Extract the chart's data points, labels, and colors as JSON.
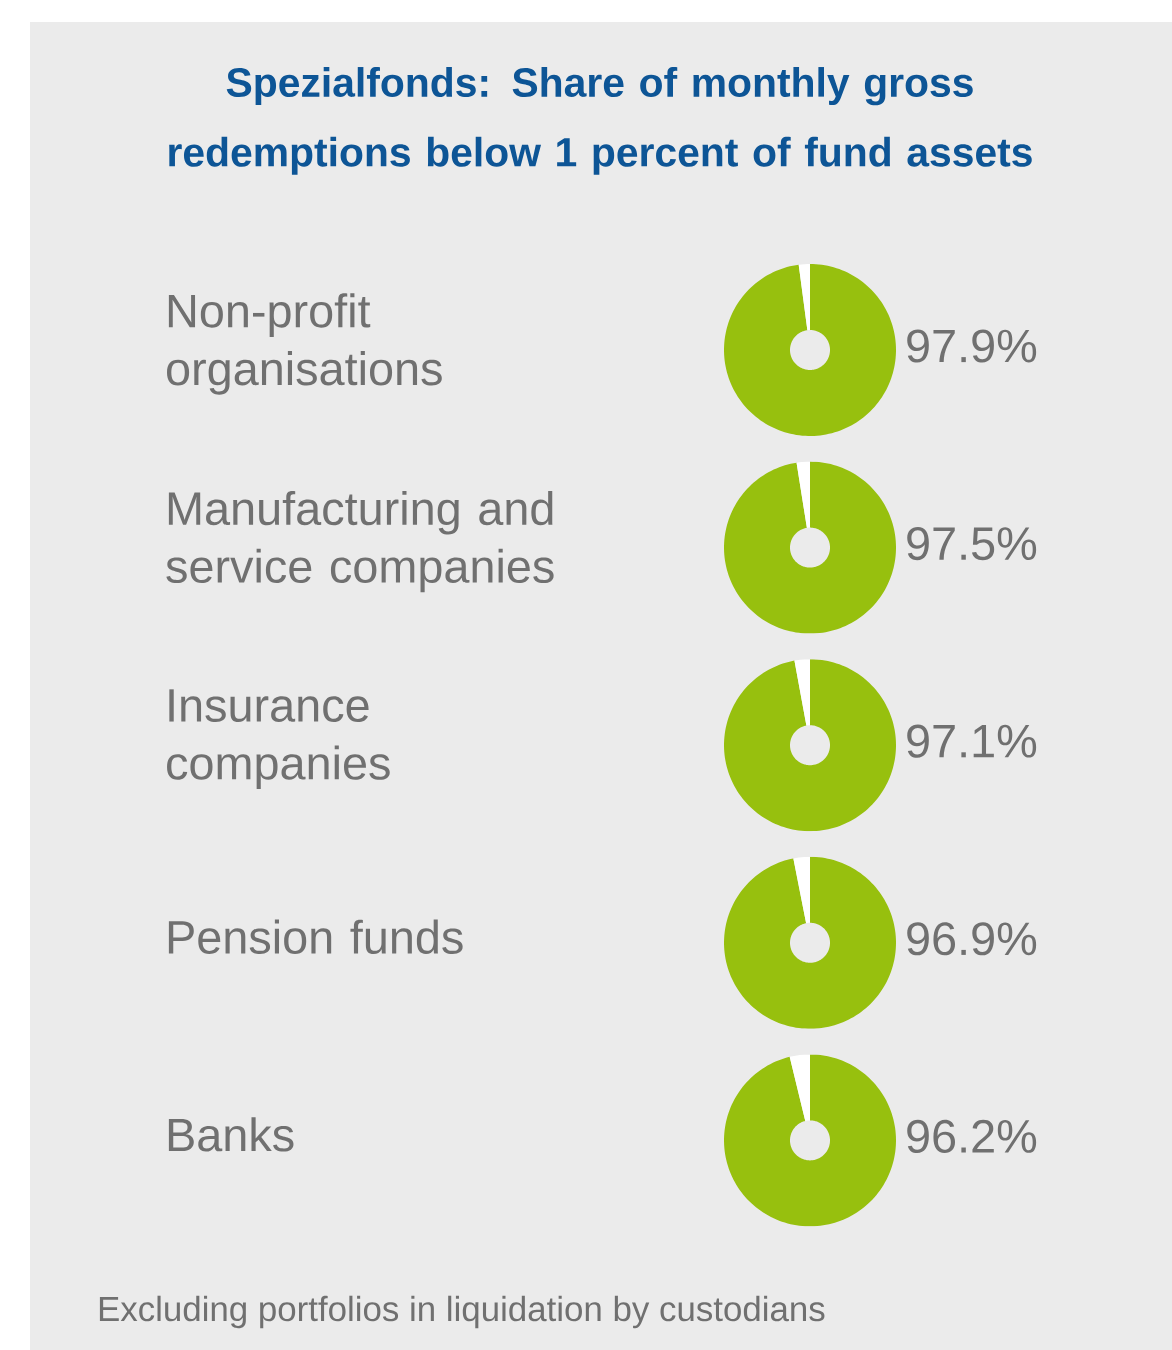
{
  "chart_data": [
    {
      "type": "other",
      "title": "Spezialfonds: Share of monthly gross redemptions below 1 percent of fund assets",
      "annotations": [
        "Excluding portfolios in liquidation by custodians"
      ]
    },
    {
      "type": "donut",
      "title": "Non-profit organisations",
      "categories": [
        null,
        null
      ],
      "values": [
        97.9,
        2.1
      ],
      "colors": [
        "#97c00e",
        "#ffffff"
      ],
      "value_labels": [
        "97.9%",
        null
      ]
    },
    {
      "type": "donut",
      "title": "Manufacturing and service companies",
      "categories": [
        null,
        null
      ],
      "values": [
        97.5,
        2.5
      ],
      "colors": [
        "#97c00e",
        "#ffffff"
      ],
      "value_labels": [
        "97.5%",
        null
      ]
    },
    {
      "type": "donut",
      "title": "Insurance companies",
      "categories": [
        null,
        null
      ],
      "values": [
        97.1,
        2.9
      ],
      "colors": [
        "#97c00e",
        "#ffffff"
      ],
      "value_labels": [
        "97.1%",
        null
      ]
    },
    {
      "type": "donut",
      "title": "Pension funds",
      "categories": [
        null,
        null
      ],
      "values": [
        96.9,
        3.1
      ],
      "colors": [
        "#97c00e",
        "#ffffff"
      ],
      "value_labels": [
        "96.9%",
        null
      ]
    },
    {
      "type": "donut",
      "title": "Banks",
      "categories": [
        null,
        null
      ],
      "values": [
        96.2,
        3.8
      ],
      "colors": [
        "#97c00e",
        "#ffffff"
      ],
      "value_labels": [
        "96.2%",
        null
      ]
    }
  ]
}
